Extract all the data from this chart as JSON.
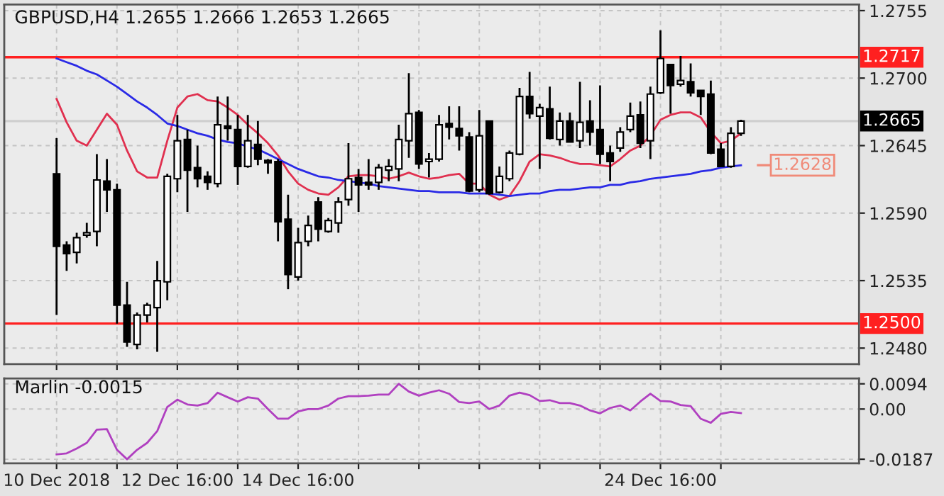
{
  "chart_data": [
    {
      "type": "candlestick",
      "title": "GBPUSD,H4 1.2655 1.2666 1.2653 1.2665",
      "categories": [
        null,
        null,
        null,
        null,
        null,
        null,
        null,
        null,
        null,
        null,
        null,
        null,
        null,
        null,
        null,
        null,
        null,
        null,
        null,
        null,
        null,
        null,
        null,
        null,
        null,
        null,
        null,
        null,
        null,
        null,
        null,
        null,
        null,
        null,
        null,
        null,
        null,
        null,
        null,
        null,
        null,
        null,
        null,
        null,
        null,
        null,
        null,
        null,
        null,
        null,
        null,
        null,
        null,
        null,
        null,
        null,
        null,
        null,
        null,
        null,
        null,
        null,
        null,
        null,
        null,
        null,
        null,
        null,
        null
      ],
      "ohlc": [
        [
          1.2622,
          1.2651,
          1.2507,
          1.2563
        ],
        [
          1.2564,
          1.2567,
          1.2543,
          1.2557
        ],
        [
          1.2558,
          1.2574,
          1.2549,
          1.257
        ],
        [
          1.2572,
          1.2582,
          1.257,
          1.2574
        ],
        [
          1.2575,
          1.2638,
          1.2563,
          1.2617
        ],
        [
          1.2616,
          1.2634,
          1.2591,
          1.2609
        ],
        [
          1.2609,
          1.2614,
          1.25,
          1.2515
        ],
        [
          1.2515,
          1.2534,
          1.2481,
          1.2485
        ],
        [
          1.2483,
          1.2509,
          1.2479,
          1.2507
        ],
        [
          1.2507,
          1.2517,
          1.2501,
          1.2515
        ],
        [
          1.2513,
          1.2551,
          1.2477,
          1.2535
        ],
        [
          1.2534,
          1.2622,
          1.2519,
          1.262
        ],
        [
          1.2618,
          1.267,
          1.2607,
          1.2649
        ],
        [
          1.265,
          1.2658,
          1.2591,
          1.2625
        ],
        [
          1.2627,
          1.2645,
          1.2611,
          1.2618
        ],
        [
          1.262,
          1.2624,
          1.2609,
          1.2615
        ],
        [
          1.2614,
          1.2685,
          1.2611,
          1.2662
        ],
        [
          1.2661,
          1.2685,
          1.2649,
          1.2659
        ],
        [
          1.2658,
          1.267,
          1.2613,
          1.2628
        ],
        [
          1.2628,
          1.267,
          1.2627,
          1.2649
        ],
        [
          1.2646,
          1.2665,
          1.2629,
          1.2634
        ],
        [
          1.2633,
          1.2634,
          1.2622,
          1.2631
        ],
        [
          1.2632,
          1.2634,
          1.2567,
          1.2583
        ],
        [
          1.2585,
          1.2605,
          1.2528,
          1.254
        ],
        [
          1.2538,
          1.2578,
          1.2535,
          1.2566
        ],
        [
          1.2567,
          1.2588,
          1.2563,
          1.258
        ],
        [
          1.2599,
          1.2603,
          1.2567,
          1.2577
        ],
        [
          1.2575,
          1.2586,
          1.2574,
          1.2584
        ],
        [
          1.2582,
          1.2603,
          1.2574,
          1.2599
        ],
        [
          1.2601,
          1.2647,
          1.2596,
          1.2618
        ],
        [
          1.2619,
          1.2626,
          1.2591,
          1.2613
        ],
        [
          1.2615,
          1.2634,
          1.2609,
          1.2613
        ],
        [
          1.2615,
          1.263,
          1.2609,
          1.2627
        ],
        [
          1.2625,
          1.2634,
          1.2616,
          1.2628
        ],
        [
          1.2626,
          1.2662,
          1.2616,
          1.265
        ],
        [
          1.2649,
          1.2704,
          1.2635,
          1.2671
        ],
        [
          1.2672,
          1.2674,
          1.2626,
          1.263
        ],
        [
          1.2632,
          1.2639,
          1.2619,
          1.2634
        ],
        [
          1.2634,
          1.267,
          1.2632,
          1.2662
        ],
        [
          1.2663,
          1.2677,
          1.265,
          1.266
        ],
        [
          1.2659,
          1.2677,
          1.2641,
          1.2653
        ],
        [
          1.2652,
          1.2656,
          1.2607,
          1.2608
        ],
        [
          1.2609,
          1.2674,
          1.2607,
          1.2653
        ],
        [
          1.2665,
          1.2665,
          1.2605,
          1.2606
        ],
        [
          1.2607,
          1.2628,
          1.2606,
          1.262
        ],
        [
          1.2618,
          1.2641,
          1.2616,
          1.2639
        ],
        [
          1.2638,
          1.2692,
          1.2637,
          1.2685
        ],
        [
          1.2685,
          1.2705,
          1.2667,
          1.2671
        ],
        [
          1.2669,
          1.2679,
          1.2626,
          1.2676
        ],
        [
          1.2675,
          1.2693,
          1.265,
          1.2651
        ],
        [
          1.265,
          1.2672,
          1.2645,
          1.2665
        ],
        [
          1.2665,
          1.2672,
          1.2648,
          1.2648
        ],
        [
          1.2649,
          1.2697,
          1.2643,
          1.2664
        ],
        [
          1.2665,
          1.2682,
          1.2645,
          1.2656
        ],
        [
          1.2658,
          1.2694,
          1.263,
          1.2638
        ],
        [
          1.2639,
          1.2645,
          1.2616,
          1.2632
        ],
        [
          1.2643,
          1.266,
          1.264,
          1.2656
        ],
        [
          1.2658,
          1.268,
          1.2656,
          1.2669
        ],
        [
          1.267,
          1.2681,
          1.2643,
          1.2647
        ],
        [
          1.2649,
          1.2693,
          1.2634,
          1.2687
        ],
        [
          1.2688,
          1.2739,
          1.2687,
          1.2716
        ],
        [
          1.2711,
          1.2711,
          1.2671,
          1.2694
        ],
        [
          1.2695,
          1.2718,
          1.2693,
          1.2698
        ],
        [
          1.2697,
          1.2712,
          1.2685,
          1.2688
        ],
        [
          1.269,
          1.269,
          1.267,
          1.2685
        ],
        [
          1.2687,
          1.2698,
          1.2638,
          1.2639
        ],
        [
          1.2642,
          1.2647,
          1.2628,
          1.2628
        ],
        [
          1.2628,
          1.266,
          1.2627,
          1.2655
        ],
        [
          1.2655,
          1.2666,
          1.2653,
          1.2665
        ]
      ],
      "series": [
        {
          "type": "line",
          "color": "#e0304f",
          "values": [
            1.2683,
            1.2664,
            1.2649,
            1.2645,
            1.2658,
            1.2671,
            1.2662,
            1.2641,
            1.2624,
            1.2619,
            1.2619,
            1.2649,
            1.2676,
            1.2685,
            1.2687,
            1.2682,
            1.2681,
            1.2676,
            1.267,
            1.2662,
            1.2655,
            1.2647,
            1.2637,
            1.2624,
            1.2614,
            1.2609,
            1.2606,
            1.2605,
            1.2611,
            1.262,
            1.2621,
            1.2621,
            1.262,
            1.2618,
            1.262,
            1.2623,
            1.262,
            1.2618,
            1.2619,
            1.2621,
            1.2622,
            1.2614,
            1.2614,
            1.2605,
            1.2601,
            1.2604,
            1.2616,
            1.2632,
            1.2638,
            1.2637,
            1.2635,
            1.2632,
            1.263,
            1.263,
            1.2629,
            1.2628,
            1.2634,
            1.2641,
            1.2645,
            1.2653,
            1.2666,
            1.267,
            1.2672,
            1.2672,
            1.2668,
            1.2656,
            1.2647,
            1.2649,
            1.2655
          ]
        },
        {
          "type": "line",
          "color": "#2a2ae6",
          "values": [
            1.2716,
            1.2713,
            1.271,
            1.2706,
            1.2703,
            1.2698,
            1.2693,
            1.2687,
            1.2681,
            1.2676,
            1.267,
            1.2663,
            1.2661,
            1.2658,
            1.2655,
            1.2653,
            1.265,
            1.2648,
            1.2647,
            1.2644,
            1.2642,
            1.2638,
            1.2634,
            1.263,
            1.2626,
            1.2623,
            1.262,
            1.2619,
            1.2617,
            1.2616,
            1.2615,
            1.2614,
            1.2612,
            1.2611,
            1.261,
            1.2609,
            1.2608,
            1.2608,
            1.2607,
            1.2607,
            1.2607,
            1.2606,
            1.2606,
            1.2606,
            1.2605,
            1.2604,
            1.2605,
            1.2606,
            1.2606,
            1.2608,
            1.2609,
            1.2609,
            1.261,
            1.2611,
            1.2611,
            1.2613,
            1.2613,
            1.2615,
            1.2616,
            1.2618,
            1.2619,
            1.262,
            1.2621,
            1.2622,
            1.2624,
            1.2625,
            1.2627,
            1.2628,
            1.2629
          ]
        }
      ],
      "ylim": [
        1.2467,
        1.276
      ],
      "yticks": [
        1.2755,
        {
          "value": 1.27,
          "label": "1.2700"
        },
        1.2645,
        {
          "value": 1.259,
          "label": "1.2590"
        },
        1.2535,
        {
          "value": 1.248,
          "label": "1.2480"
        }
      ],
      "ref_lines": [
        {
          "axis": "y",
          "value": 1.2717,
          "label": "1.2717",
          "color": "#ff2020"
        },
        {
          "axis": "y",
          "value": 1.25,
          "label": "1.2500",
          "color": "#ff2020"
        },
        {
          "axis": "y",
          "value": 1.2665,
          "label": "1.2665",
          "color": "#cfcfcf"
        }
      ],
      "annotations": [
        "1.2628"
      ],
      "grid": true,
      "tick_labels": "y"
    },
    {
      "type": "line",
      "title": "Marlin -0.0015",
      "categories": [
        "10 Dec 2018",
        null,
        null,
        null,
        null,
        null,
        null,
        null,
        null,
        null,
        null,
        null,
        "12 Dec 16:00",
        null,
        null,
        null,
        null,
        null,
        null,
        null,
        null,
        null,
        null,
        null,
        "14 Dec 16:00",
        null,
        null,
        null,
        null,
        null,
        null,
        null,
        null,
        null,
        null,
        null,
        null,
        null,
        null,
        null,
        null,
        null,
        null,
        null,
        null,
        null,
        null,
        null,
        null,
        null,
        null,
        null,
        null,
        null,
        null,
        null,
        null,
        null,
        null,
        null,
        "24 Dec 16:00",
        null,
        null,
        null,
        null,
        null,
        null,
        null,
        null
      ],
      "series": [
        {
          "color": "#b040c0",
          "values": [
            -0.0169,
            -0.0165,
            -0.0147,
            -0.0126,
            -0.0077,
            -0.0075,
            -0.0152,
            -0.0187,
            -0.0152,
            -0.0126,
            -0.0082,
            0.0008,
            0.0035,
            0.0017,
            0.0013,
            0.0022,
            0.0061,
            0.0044,
            0.0028,
            0.0044,
            0.0039,
            0.0,
            -0.0036,
            -0.0036,
            -0.0009,
            0.0,
            0.0,
            0.0013,
            0.0039,
            0.0048,
            0.0048,
            0.005,
            0.0054,
            0.0054,
            0.0094,
            0.0065,
            0.005,
            0.0061,
            0.007,
            0.0057,
            0.0026,
            0.0022,
            0.0028,
            0.0,
            0.0013,
            0.005,
            0.0061,
            0.0052,
            0.003,
            0.0033,
            0.0022,
            0.0022,
            0.0013,
            -0.0005,
            -0.0016,
            0.0004,
            0.0013,
            -0.0005,
            0.0028,
            0.0057,
            0.003,
            0.0028,
            0.0015,
            0.0011,
            -0.0036,
            -0.0051,
            -0.0018,
            -0.0011,
            -0.0015
          ]
        }
      ],
      "ylim": [
        -0.0202,
        0.0114
      ],
      "yticks": [
        0.0094,
        {
          "value": 0,
          "label": "0.00"
        },
        -0.0187
      ],
      "grid": true
    }
  ]
}
